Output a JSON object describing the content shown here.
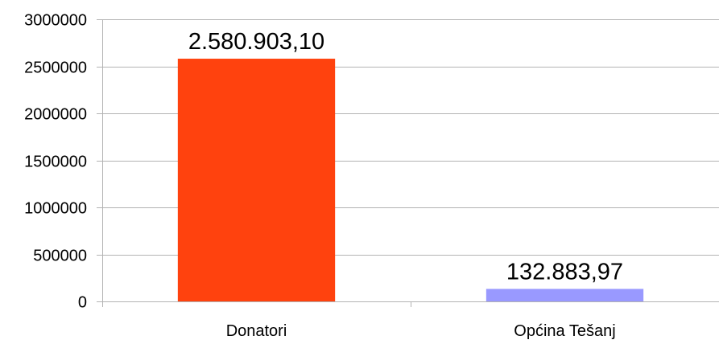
{
  "chart_data": {
    "type": "bar",
    "categories": [
      "Donatori",
      "Općina Tešanj"
    ],
    "values": [
      2580903.1,
      132883.97
    ],
    "data_labels": [
      "2.580.903,10",
      "132.883,97"
    ],
    "colors": [
      "#ff420e",
      "#9999ff"
    ],
    "ylim": [
      0,
      3000000
    ],
    "y_ticks": [
      0,
      500000,
      1000000,
      1500000,
      2000000,
      2500000,
      3000000
    ],
    "y_tick_labels": [
      "0",
      "500000",
      "1000000",
      "1500000",
      "2000000",
      "2500000",
      "3000000"
    ],
    "grid": true,
    "legend": "none"
  }
}
